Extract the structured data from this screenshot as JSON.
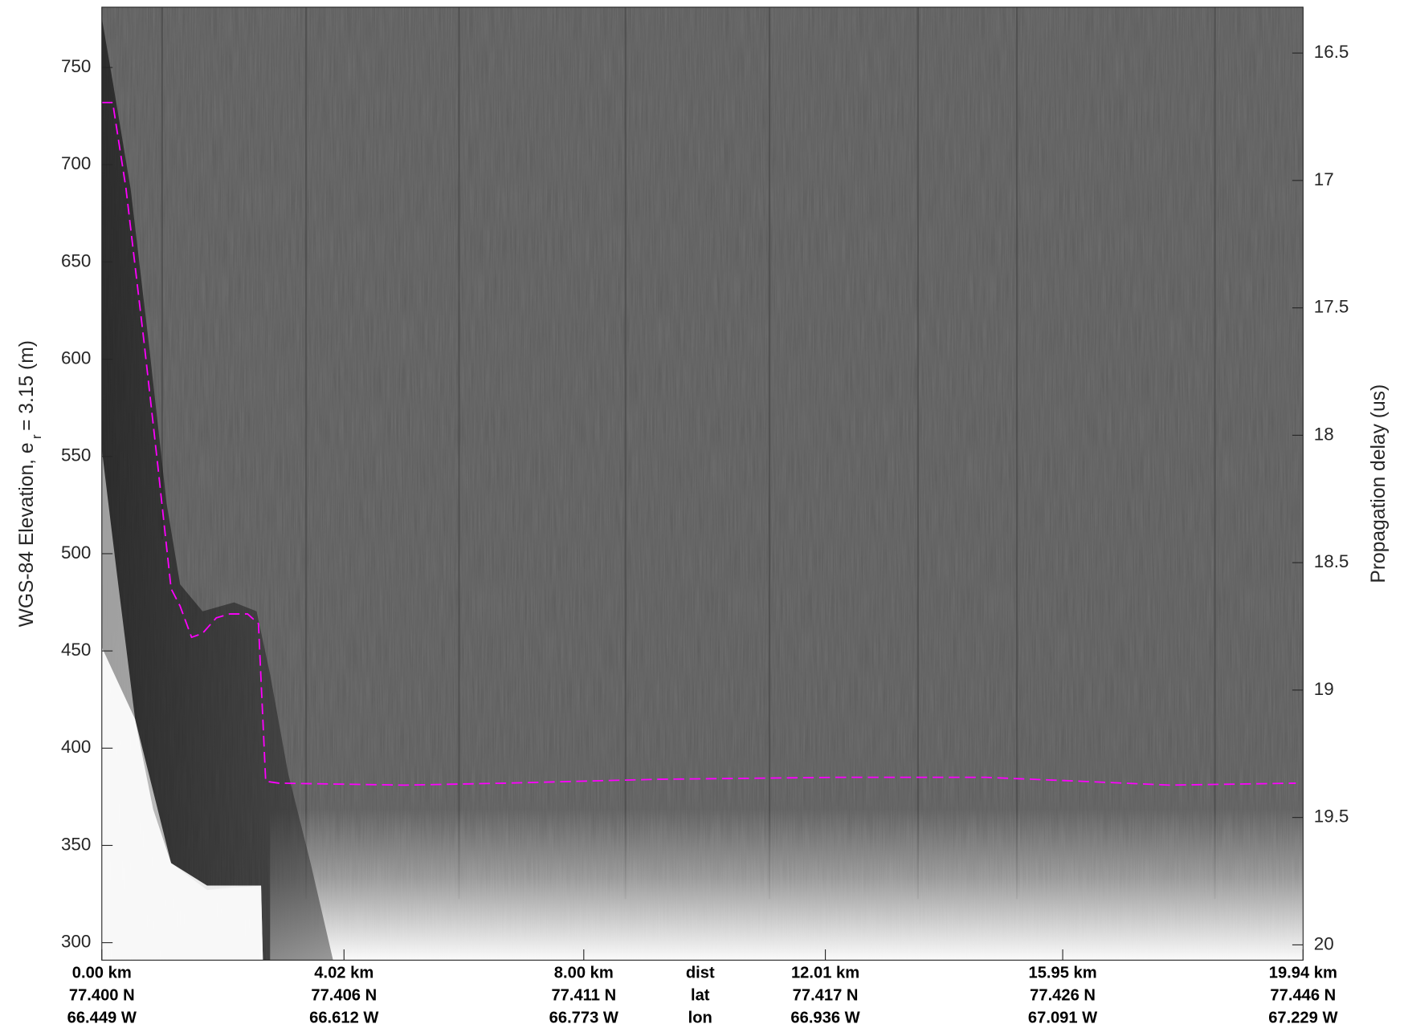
{
  "chart_data": {
    "type": "line",
    "ylabel": "WGS-84 Elevation, e",
    "ylabel_subscript": "r",
    "ylabel_suffix": "= 3.15 (m)",
    "y2label": "Propagation delay (us)",
    "xrow_labels": [
      "dist",
      "lat",
      "lon"
    ],
    "xlim": [
      0,
      19.94
    ],
    "xticks": [
      {
        "value": 0,
        "label": "0.00 km"
      },
      {
        "value": 4.02,
        "label": "4.02 km"
      },
      {
        "value": 8.0,
        "label": "8.00 km"
      },
      {
        "value": 12.01,
        "label": "12.01 km"
      },
      {
        "value": 15.95,
        "label": "15.95 km"
      },
      {
        "value": 19.94,
        "label": "19.94 km"
      }
    ],
    "xtick_lat": [
      "77.400 N",
      "77.406 N",
      "77.411 N",
      "77.417 N",
      "77.426 N",
      "77.446 N"
    ],
    "xtick_lon": [
      "66.449 W",
      "66.612 W",
      "66.773 W",
      "66.936 W",
      "67.091 W",
      "67.229 W"
    ],
    "ylim": [
      291,
      781
    ],
    "yticks": [
      300,
      350,
      400,
      450,
      500,
      550,
      600,
      650,
      700,
      750
    ],
    "y2lim": [
      20.06,
      16.32
    ],
    "y2ticks": [
      16.5,
      17,
      17.5,
      18,
      18.5,
      19,
      19.5,
      20
    ],
    "series": [
      {
        "name": "surface",
        "color": "#ff00ff",
        "axis": "y",
        "x": [
          0,
          0.18,
          0.4,
          0.7,
          0.93,
          1.15,
          1.3,
          1.49,
          1.67,
          1.9,
          2.12,
          2.42,
          2.6,
          2.72,
          2.94,
          5.03,
          6.68,
          9.22,
          12.2,
          14.67,
          16.24,
          17.73,
          19.82
        ],
        "values": [
          732,
          732,
          688,
          609,
          545,
          482,
          473,
          457,
          459,
          467,
          469,
          469,
          464,
          383,
          382,
          381,
          382,
          384,
          385,
          385,
          383,
          381,
          382
        ]
      }
    ]
  }
}
